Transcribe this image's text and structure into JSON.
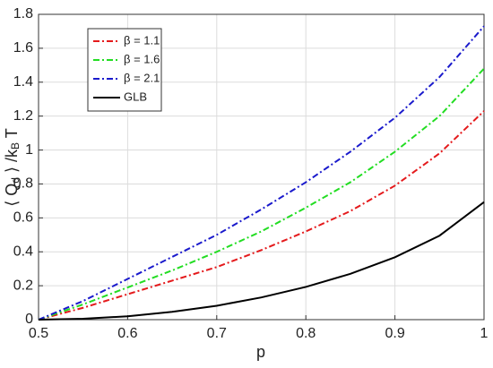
{
  "chart_data": {
    "type": "line",
    "x_label": "p",
    "y_label": [
      "⟨ Q",
      "d",
      " ⟩ /k",
      "B",
      " T"
    ],
    "x": [
      0.5,
      0.55,
      0.6,
      0.65,
      0.7,
      0.75,
      0.8,
      0.85,
      0.9,
      0.95,
      1.0
    ],
    "series": [
      {
        "name": "β = 1.1",
        "color": "#e41a1c",
        "dash": "dashdot",
        "values": [
          0,
          0.07,
          0.15,
          0.23,
          0.31,
          0.41,
          0.52,
          0.64,
          0.79,
          0.98,
          1.23
        ]
      },
      {
        "name": "β = 1.6",
        "color": "#22dd22",
        "dash": "dashdot",
        "values": [
          0,
          0.09,
          0.19,
          0.29,
          0.4,
          0.52,
          0.66,
          0.81,
          0.99,
          1.2,
          1.48
        ]
      },
      {
        "name": "β = 2.1",
        "color": "#1a1acc",
        "dash": "dashdot",
        "values": [
          0,
          0.11,
          0.24,
          0.37,
          0.5,
          0.65,
          0.81,
          0.99,
          1.19,
          1.43,
          1.73
        ]
      },
      {
        "name": "GLB",
        "color": "#000000",
        "dash": "solid",
        "values": [
          0,
          0.005,
          0.02,
          0.046,
          0.082,
          0.131,
          0.193,
          0.27,
          0.368,
          0.495,
          0.693
        ]
      }
    ],
    "xlim": [
      0.5,
      1
    ],
    "xticks": [
      0.5,
      0.6,
      0.7,
      0.8,
      0.9,
      1
    ],
    "ylim": [
      0,
      1.8
    ],
    "yticks": [
      0,
      0.2,
      0.4,
      0.6,
      0.8,
      1,
      1.2,
      1.4,
      1.6,
      1.8
    ],
    "grid": true,
    "legend": "upper-left"
  }
}
